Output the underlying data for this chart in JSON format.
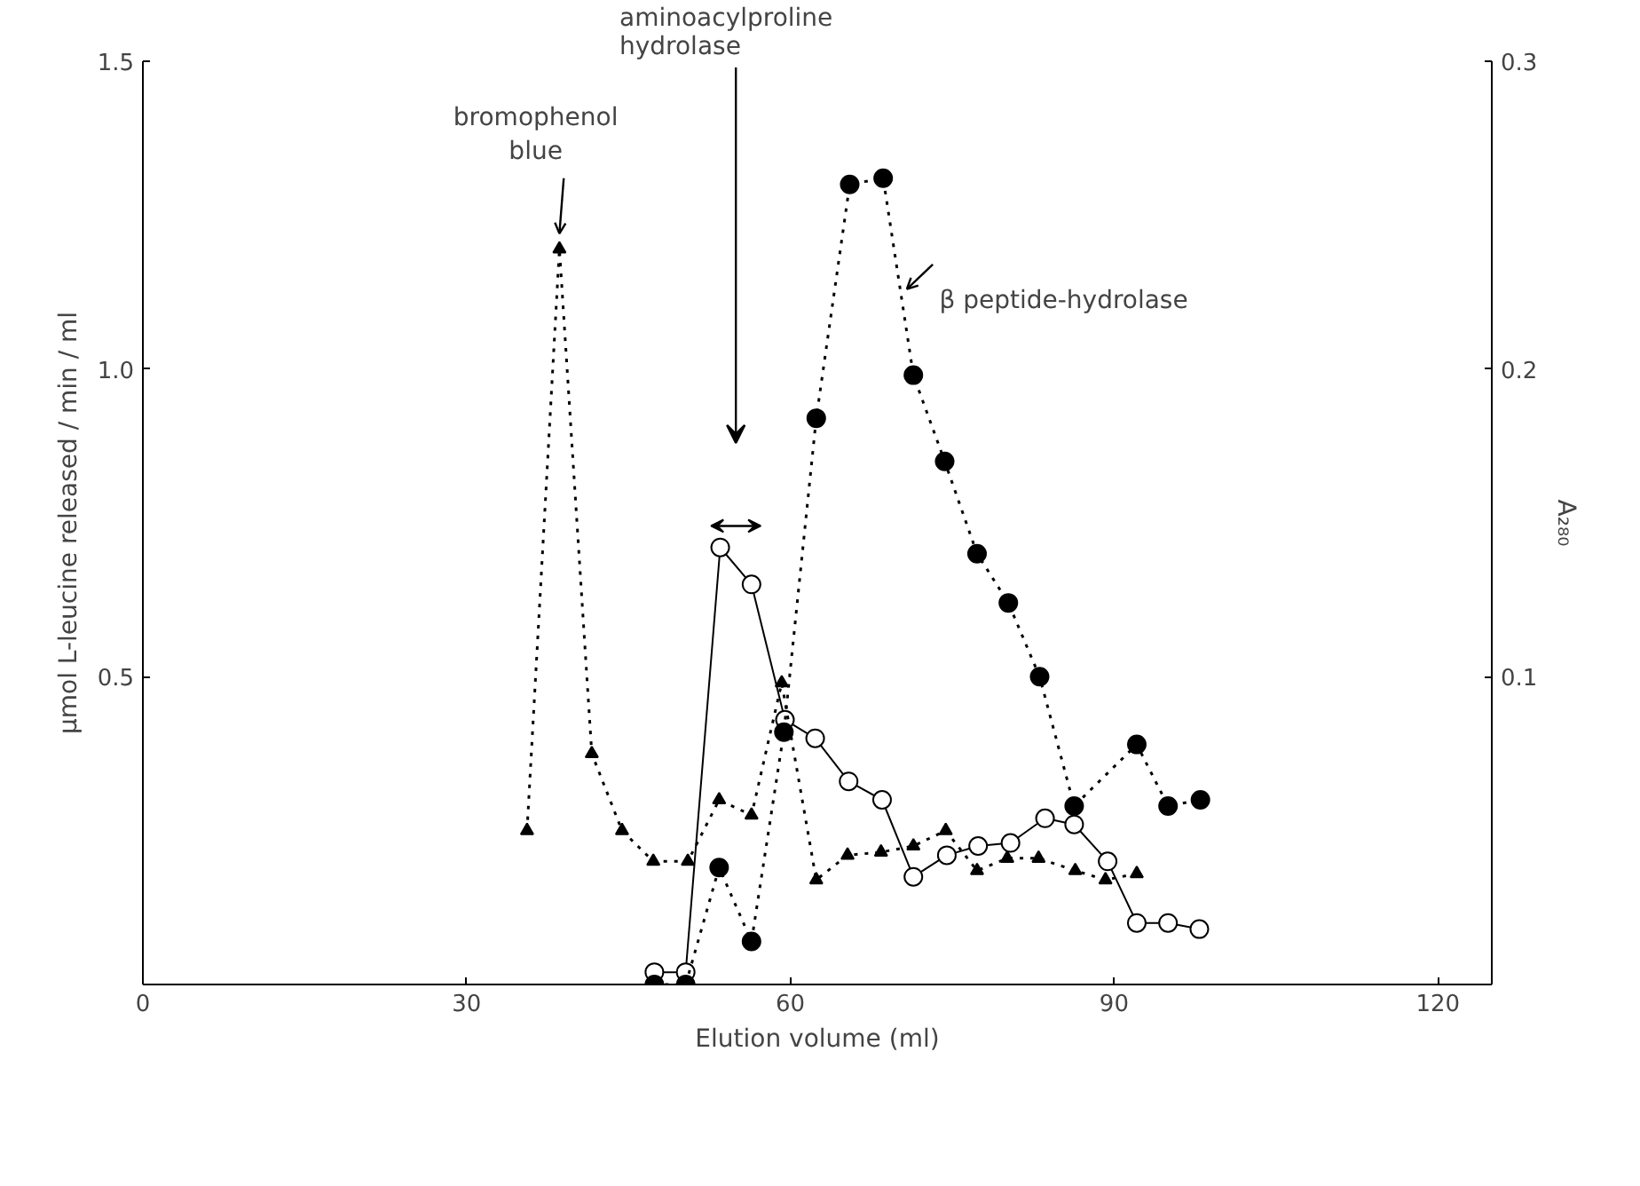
{
  "chart_data": {
    "type": "line",
    "xlabel": "Elution volume (ml)",
    "ylabel": "μmol L-leucine released / min / ml",
    "y2label": "A₂₈₀",
    "xlim": [
      0,
      125
    ],
    "xticks": [
      0,
      30,
      60,
      90,
      120
    ],
    "ylim": [
      0,
      1.5
    ],
    "yticks": [
      {
        "value": 0.5,
        "label": "0.5"
      },
      {
        "value": 1.0,
        "label": "1.0"
      },
      {
        "value": 1.5,
        "label": "1.5"
      }
    ],
    "y2lim": [
      0,
      0.3
    ],
    "y2ticks": [
      0.1,
      0.2,
      0.3
    ],
    "grid": false,
    "series": [
      {
        "color": "#000000",
        "marker": "circle",
        "line_style": "solid",
        "x": [
          47.4,
          50.3,
          53.5,
          56.4,
          59.5,
          62.3,
          65.4,
          68.5,
          71.4,
          74.5,
          77.4,
          80.4,
          83.6,
          86.3,
          89.4,
          92.1,
          95.0,
          97.9
        ],
        "values": [
          0.02,
          0.02,
          0.71,
          0.65,
          0.43,
          0.4,
          0.33,
          0.3,
          0.175,
          0.21,
          0.225,
          0.23,
          0.27,
          0.26,
          0.2,
          0.1,
          0.1,
          0.09
        ]
      },
      {
        "color": "#000000",
        "marker": "circle",
        "line_style": "dotted",
        "x": [
          47.4,
          50.3,
          53.4,
          56.4,
          59.4,
          62.4,
          65.5,
          68.6,
          71.4,
          74.3,
          77.3,
          80.2,
          83.1,
          86.3,
          92.1,
          95.0,
          98.0
        ],
        "values": [
          0.0,
          0.0,
          0.19,
          0.07,
          0.41,
          0.92,
          1.3,
          1.31,
          0.99,
          0.85,
          0.7,
          0.62,
          0.5,
          0.29,
          0.39,
          0.29,
          0.3
        ]
      },
      {
        "color": "#000000",
        "marker": "triangle",
        "line_style": "dotted",
        "axis": "y2",
        "x": [
          35.6,
          38.6,
          41.6,
          44.4,
          47.3,
          50.5,
          53.4,
          56.4,
          59.2,
          62.4,
          65.3,
          68.4,
          71.4,
          74.4,
          77.3,
          80.1,
          83.0,
          86.4,
          89.2,
          92.1
        ],
        "values": [
          0.05,
          0.239,
          0.075,
          0.05,
          0.04,
          0.04,
          0.06,
          0.055,
          0.098,
          0.034,
          0.042,
          0.043,
          0.045,
          0.05,
          0.037,
          0.041,
          0.041,
          0.037,
          0.034,
          0.036
        ]
      }
    ],
    "annotations": [
      {
        "text": "bromophenol\nblue",
        "x": 38.6,
        "y": 1.2
      },
      "aminoacylproline\nhydrolase",
      {
        "text": "β peptide-hydrolase",
        "x": 70.4,
        "y": 1.13
      }
    ]
  }
}
